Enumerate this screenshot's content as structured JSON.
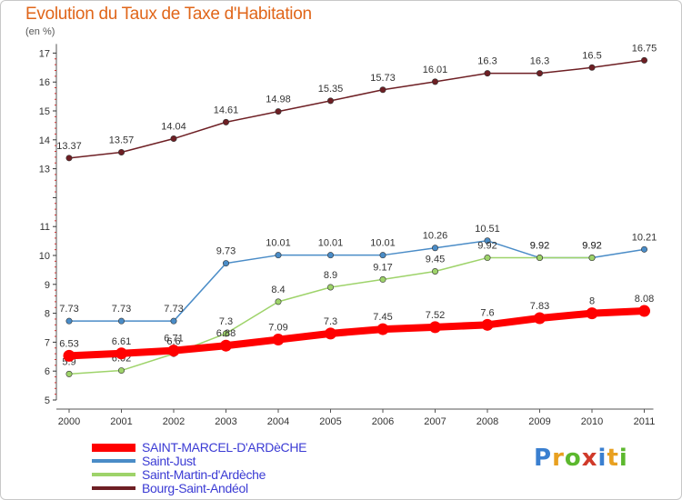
{
  "header": {
    "title": "Evolution du Taux de Taxe d'Habitation",
    "subtitle": "(en %)"
  },
  "chart_data": {
    "type": "line",
    "x": [
      "2000",
      "2001",
      "2002",
      "2003",
      "2004",
      "2005",
      "2006",
      "2007",
      "2008",
      "2009",
      "2010",
      "2011"
    ],
    "yticks": [
      "5",
      "6",
      "7",
      "8",
      "9",
      "10",
      "11",
      "13",
      "14",
      "15",
      "16",
      "17"
    ],
    "ylim": [
      5,
      17
    ],
    "grid": false,
    "series": [
      {
        "name": "Bourg-Saint-Andéol",
        "color": "#6e1f24",
        "values": [
          13.37,
          13.57,
          14.04,
          14.61,
          14.98,
          15.35,
          15.73,
          16.01,
          16.3,
          16.3,
          16.5,
          16.75
        ],
        "labels": [
          "13.37",
          "13.57",
          "14.04",
          "14.61",
          "14.98",
          "15.35",
          "15.73",
          "16.01",
          "16.3",
          "16.3",
          "16.5",
          "16.75"
        ]
      },
      {
        "name": "Saint-Just",
        "color": "#4a8cc7",
        "values": [
          7.73,
          7.73,
          7.73,
          9.73,
          10.01,
          10.01,
          10.01,
          10.26,
          10.51,
          9.92,
          9.92,
          10.21
        ],
        "labels": [
          "7.73",
          "7.73",
          "7.73",
          "9.73",
          "10.01",
          "10.01",
          "10.01",
          "10.26",
          "10.51",
          "9.92",
          "9.92",
          "10.21"
        ]
      },
      {
        "name": "Saint-Martin-d'Ardèche",
        "color": "#9ed36a",
        "values": [
          5.9,
          6.02,
          6.6,
          7.3,
          8.4,
          8.9,
          9.17,
          9.45,
          9.92,
          9.92,
          9.92,
          null
        ],
        "labels": [
          "5.9",
          "6.02",
          "6.6",
          "7.3",
          "8.4",
          "8.9",
          "9.17",
          "9.45",
          "9.92",
          "9.92",
          "9.92",
          ""
        ]
      },
      {
        "name": "SAINT-MARCEL-D'ARDèCHE",
        "color": "#ff0000",
        "values": [
          6.53,
          6.61,
          6.71,
          6.88,
          7.09,
          7.3,
          7.45,
          7.52,
          7.6,
          7.83,
          8,
          8.08
        ],
        "labels": [
          "6.53",
          "6.61",
          "6.71",
          "6.88",
          "7.09",
          "7.3",
          "7.45",
          "7.52",
          "7.6",
          "7.83",
          "8",
          "8.08"
        ]
      }
    ],
    "legend": [
      {
        "label": "SAINT-MARCEL-D'ARDèCHE",
        "color": "#ff0000"
      },
      {
        "label": "Saint-Just",
        "color": "#4a8cc7"
      },
      {
        "label": "Saint-Martin-d'Ardèche",
        "color": "#9ed36a"
      },
      {
        "label": "Bourg-Saint-Andéol",
        "color": "#6e1f24"
      }
    ]
  },
  "logo": {
    "letters": [
      "P",
      "r",
      "o",
      "x",
      "i",
      "t",
      "i"
    ],
    "colors": [
      "#3a7fd0",
      "#e8a020",
      "#5cb82e",
      "#d03a2a",
      "#3a7fd0",
      "#e8a020",
      "#5cb82e"
    ]
  }
}
